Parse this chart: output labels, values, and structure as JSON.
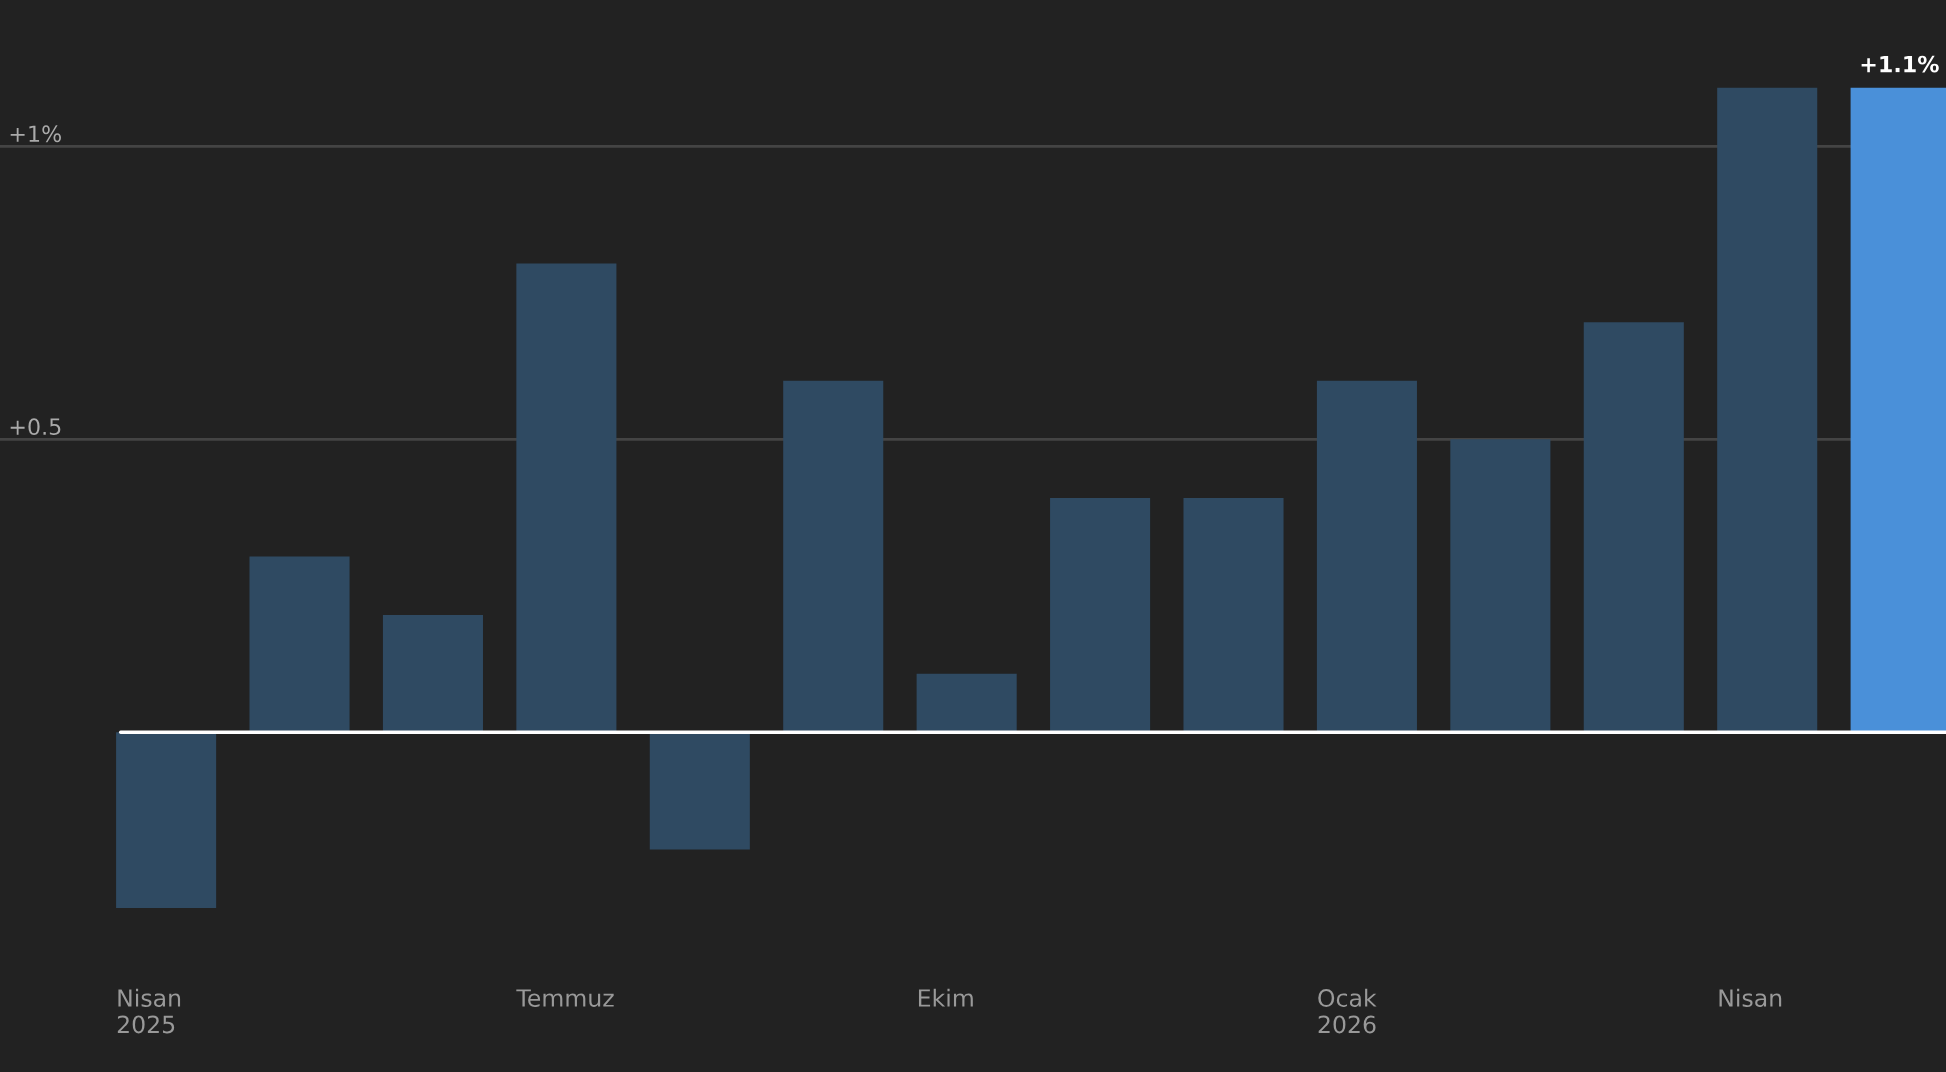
{
  "chart_data": {
    "type": "bar",
    "categories": [
      "Nisan\n2025",
      null,
      null,
      "Temmuz",
      null,
      null,
      "Ekim",
      null,
      null,
      "Ocak\n2026",
      null,
      null,
      "Nisan",
      null
    ],
    "values": [
      -0.3,
      0.3,
      0.2,
      0.8,
      -0.2,
      0.6,
      0.1,
      0.4,
      0.4,
      0.6,
      0.5,
      0.7,
      1.1,
      1.1
    ],
    "colors": [
      "#2f4a62",
      "#2f4a62",
      "#2f4a62",
      "#2f4a62",
      "#2f4a62",
      "#2f4a62",
      "#2f4a62",
      "#2f4a62",
      "#2f4a62",
      "#2f4a62",
      "#2f4a62",
      "#2f4a62",
      "#2f4a62",
      "#4a90d9"
    ],
    "value_labels": [
      null,
      null,
      null,
      null,
      null,
      null,
      null,
      null,
      null,
      null,
      null,
      null,
      null,
      "+1.1%"
    ],
    "ylim": [
      -0.58,
      1.25
    ],
    "yticks": [
      {
        "value": 0.5,
        "label": "+0.5"
      },
      {
        "value": 1,
        "label": "+1%"
      }
    ],
    "ref_lines": [
      {
        "axis": "y",
        "value": 0,
        "color": "#ffffff"
      }
    ],
    "grid": "y"
  }
}
